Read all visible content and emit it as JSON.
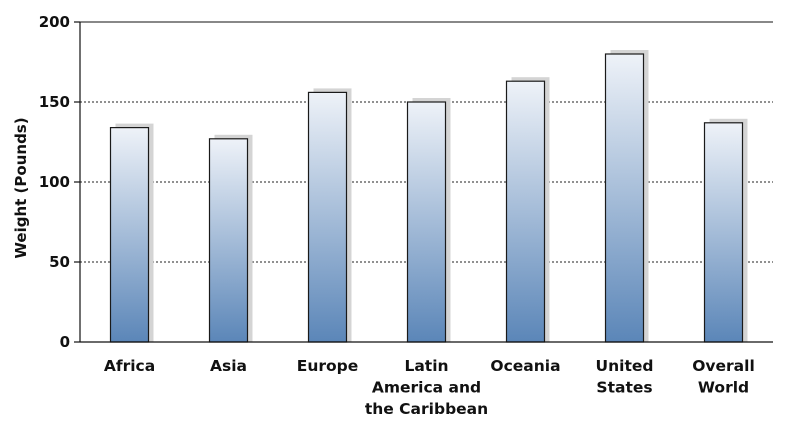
{
  "chart_data": {
    "type": "bar",
    "title": "",
    "xlabel": "",
    "ylabel": "Weight (Pounds)",
    "categories": [
      [
        "Africa"
      ],
      [
        "Asia"
      ],
      [
        "Europe"
      ],
      [
        "Latin",
        "America and",
        "the Caribbean"
      ],
      [
        "Oceania"
      ],
      [
        "United",
        "States"
      ],
      [
        "Overall",
        "World"
      ]
    ],
    "values": [
      134,
      127,
      156,
      150,
      163,
      180,
      137
    ],
    "ylim": [
      0,
      200
    ],
    "yticks": [
      0,
      50,
      100,
      150,
      200
    ],
    "grid": "dotted horizontal at 50, 100, 150",
    "colors": {
      "bar_top": "#eef2f8",
      "bar_bottom": "#5b86b8",
      "shadow": "#d4d4d4",
      "outline": "#1a1a1a"
    }
  }
}
